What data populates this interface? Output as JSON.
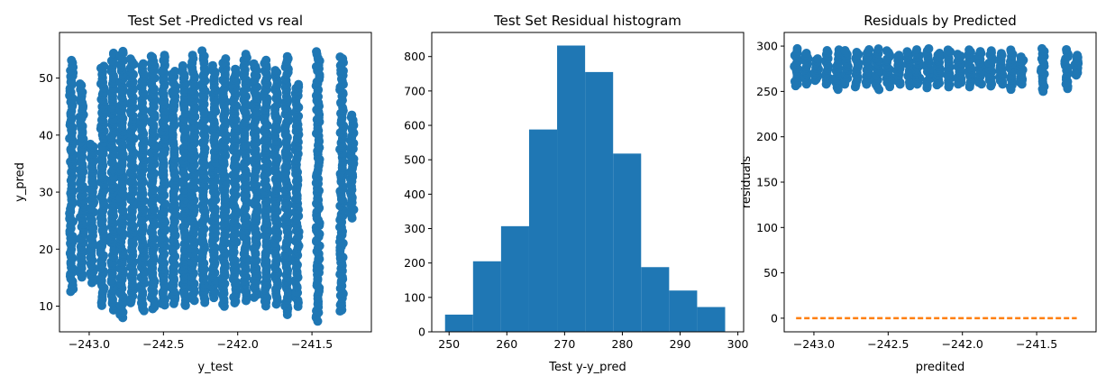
{
  "chart_data": [
    {
      "type": "scatter",
      "title": "Test Set -Predicted vs real",
      "xlabel": "y_test",
      "ylabel": "y_pred",
      "xlim": [
        -243.2,
        -241.1
      ],
      "ylim": [
        5.5,
        58
      ],
      "xticks": [
        -243.0,
        -242.5,
        -242.0,
        -241.5
      ],
      "xtick_labels": [
        "−243.0",
        "−242.5",
        "−242.0",
        "−241.5"
      ],
      "yticks": [
        10,
        20,
        30,
        40,
        50
      ],
      "yticks_labels": [
        "10",
        "20",
        "30",
        "40",
        "50"
      ],
      "grid": false,
      "color": "#1f77b4",
      "columns": [
        {
          "x": -243.12,
          "ymin": 12.5,
          "ymax": 53.2
        },
        {
          "x": -243.05,
          "ymin": 15.0,
          "ymax": 49.0
        },
        {
          "x": -242.98,
          "ymin": 14.0,
          "ymax": 38.5
        },
        {
          "x": -242.91,
          "ymin": 10.0,
          "ymax": 52.0
        },
        {
          "x": -242.84,
          "ymin": 9.5,
          "ymax": 54.5
        },
        {
          "x": -242.78,
          "ymin": 8.0,
          "ymax": 54.8
        },
        {
          "x": -242.71,
          "ymin": 10.5,
          "ymax": 53.5
        },
        {
          "x": -242.64,
          "ymin": 9.0,
          "ymax": 52.5
        },
        {
          "x": -242.57,
          "ymin": 9.5,
          "ymax": 54.0
        },
        {
          "x": -242.5,
          "ymin": 10.0,
          "ymax": 54.2
        },
        {
          "x": -242.43,
          "ymin": 10.5,
          "ymax": 51.0
        },
        {
          "x": -242.36,
          "ymin": 10.0,
          "ymax": 52.0
        },
        {
          "x": -242.3,
          "ymin": 11.0,
          "ymax": 53.8
        },
        {
          "x": -242.23,
          "ymin": 10.5,
          "ymax": 54.6
        },
        {
          "x": -242.16,
          "ymin": 11.5,
          "ymax": 52.0
        },
        {
          "x": -242.09,
          "ymin": 10.0,
          "ymax": 53.2
        },
        {
          "x": -242.02,
          "ymin": 10.5,
          "ymax": 51.5
        },
        {
          "x": -241.95,
          "ymin": 11.0,
          "ymax": 54.0
        },
        {
          "x": -241.88,
          "ymin": 11.5,
          "ymax": 52.5
        },
        {
          "x": -241.81,
          "ymin": 10.0,
          "ymax": 53.0
        },
        {
          "x": -241.74,
          "ymin": 10.5,
          "ymax": 51.5
        },
        {
          "x": -241.67,
          "ymin": 8.5,
          "ymax": 54.0
        },
        {
          "x": -241.6,
          "ymin": 10.0,
          "ymax": 49.0
        },
        {
          "x": -241.46,
          "ymin": 7.5,
          "ymax": 54.6
        },
        {
          "x": -241.3,
          "ymin": 9.0,
          "ymax": 53.8
        },
        {
          "x": -241.23,
          "ymin": 25.5,
          "ymax": 43.5
        }
      ]
    },
    {
      "type": "bar",
      "title": "Test Set Residual histogram",
      "xlabel": "Test y-y_pred",
      "ylabel": "",
      "xlim": [
        247,
        301
      ],
      "ylim": [
        0,
        870
      ],
      "xticks": [
        250,
        260,
        270,
        280,
        290,
        300
      ],
      "xtick_labels": [
        "250",
        "260",
        "270",
        "280",
        "290",
        "300"
      ],
      "yticks": [
        0,
        100,
        200,
        300,
        400,
        500,
        600,
        700,
        800
      ],
      "yticks_labels": [
        "0",
        "100",
        "200",
        "300",
        "400",
        "500",
        "600",
        "700",
        "800"
      ],
      "grid": false,
      "color": "#1f77b4",
      "bin_edges": [
        249.3,
        254.15,
        259.0,
        263.85,
        268.7,
        273.55,
        278.4,
        283.25,
        288.1,
        292.95,
        297.8
      ],
      "values": [
        50,
        205,
        307,
        588,
        832,
        755,
        518,
        188,
        120,
        72
      ]
    },
    {
      "type": "scatter",
      "title": "Residuals by Predicted",
      "xlabel": "predited",
      "ylabel": "residuals",
      "xlim": [
        -243.2,
        -241.1
      ],
      "ylim": [
        -15,
        315
      ],
      "xticks": [
        -243.0,
        -242.5,
        -242.0,
        -241.5
      ],
      "xtick_labels": [
        "−243.0",
        "−242.5",
        "−242.0",
        "−241.5"
      ],
      "yticks": [
        0,
        50,
        100,
        150,
        200,
        250,
        300
      ],
      "yticks_labels": [
        "0",
        "50",
        "100",
        "150",
        "200",
        "250",
        "300"
      ],
      "grid": false,
      "color": "#1f77b4",
      "reference_line": {
        "y": 0,
        "color": "#ff7f0e",
        "style": "dashed"
      },
      "columns": [
        {
          "x": -243.12,
          "ymin": 256,
          "ymax": 297
        },
        {
          "x": -243.05,
          "ymin": 258,
          "ymax": 292
        },
        {
          "x": -242.98,
          "ymin": 262,
          "ymax": 286
        },
        {
          "x": -242.91,
          "ymin": 258,
          "ymax": 295
        },
        {
          "x": -242.84,
          "ymin": 252,
          "ymax": 296
        },
        {
          "x": -242.78,
          "ymin": 258,
          "ymax": 295
        },
        {
          "x": -242.71,
          "ymin": 255,
          "ymax": 293
        },
        {
          "x": -242.64,
          "ymin": 258,
          "ymax": 296
        },
        {
          "x": -242.57,
          "ymin": 252,
          "ymax": 297
        },
        {
          "x": -242.5,
          "ymin": 255,
          "ymax": 295
        },
        {
          "x": -242.43,
          "ymin": 258,
          "ymax": 290
        },
        {
          "x": -242.36,
          "ymin": 256,
          "ymax": 294
        },
        {
          "x": -242.3,
          "ymin": 258,
          "ymax": 296
        },
        {
          "x": -242.23,
          "ymin": 254,
          "ymax": 297
        },
        {
          "x": -242.16,
          "ymin": 257,
          "ymax": 292
        },
        {
          "x": -242.09,
          "ymin": 255,
          "ymax": 296
        },
        {
          "x": -242.02,
          "ymin": 258,
          "ymax": 291
        },
        {
          "x": -241.95,
          "ymin": 255,
          "ymax": 296
        },
        {
          "x": -241.88,
          "ymin": 258,
          "ymax": 294
        },
        {
          "x": -241.81,
          "ymin": 256,
          "ymax": 295
        },
        {
          "x": -241.74,
          "ymin": 258,
          "ymax": 292
        },
        {
          "x": -241.67,
          "ymin": 252,
          "ymax": 296
        },
        {
          "x": -241.6,
          "ymin": 258,
          "ymax": 288
        },
        {
          "x": -241.46,
          "ymin": 250,
          "ymax": 297
        },
        {
          "x": -241.3,
          "ymin": 253,
          "ymax": 296
        },
        {
          "x": -241.23,
          "ymin": 268,
          "ymax": 290
        }
      ]
    }
  ]
}
